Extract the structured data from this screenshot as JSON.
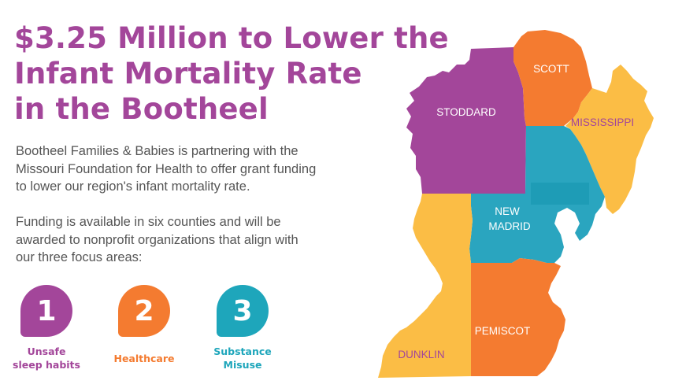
{
  "headline": {
    "line1": "$3.25 Million to Lower the",
    "line2": "Infant Mortality Rate",
    "line3": "in the Bootheel",
    "color": "#a3469a"
  },
  "paragraph1": {
    "line1": "Bootheel Families & Babies is partnering with the",
    "line2": "Missouri Foundation for Health to offer grant funding",
    "line3": "to lower our region's infant mortality rate."
  },
  "paragraph2": {
    "line1": "Funding is available in six counties and will be",
    "line2": "awarded to nonprofit organizations that align with",
    "line3": "our three focus areas:"
  },
  "focus_areas": [
    {
      "number": "1",
      "label_line1": "Unsafe",
      "label_line2": "sleep habits",
      "color": "#a3469a"
    },
    {
      "number": "2",
      "label_line1": "Healthcare",
      "label_line2": "",
      "color": "#f47b30"
    },
    {
      "number": "3",
      "label_line1": "Substance",
      "label_line2": "Misuse",
      "color": "#1ea6bb"
    }
  ],
  "map": {
    "counties": [
      {
        "name": "STODDARD",
        "color": "#a3469a"
      },
      {
        "name": "SCOTT",
        "color": "#f47b30"
      },
      {
        "name": "MISSISSIPPI",
        "color": "#fbbd45"
      },
      {
        "name": "NEW",
        "name_line2": "MADRID",
        "color": "#2aa5bf"
      },
      {
        "name": "DUNKLIN",
        "color": "#fbbd45"
      },
      {
        "name": "PEMISCOT",
        "color": "#f47b30"
      }
    ],
    "label_colors": {
      "dark": "#a3469a",
      "light": "#ffffff"
    }
  }
}
